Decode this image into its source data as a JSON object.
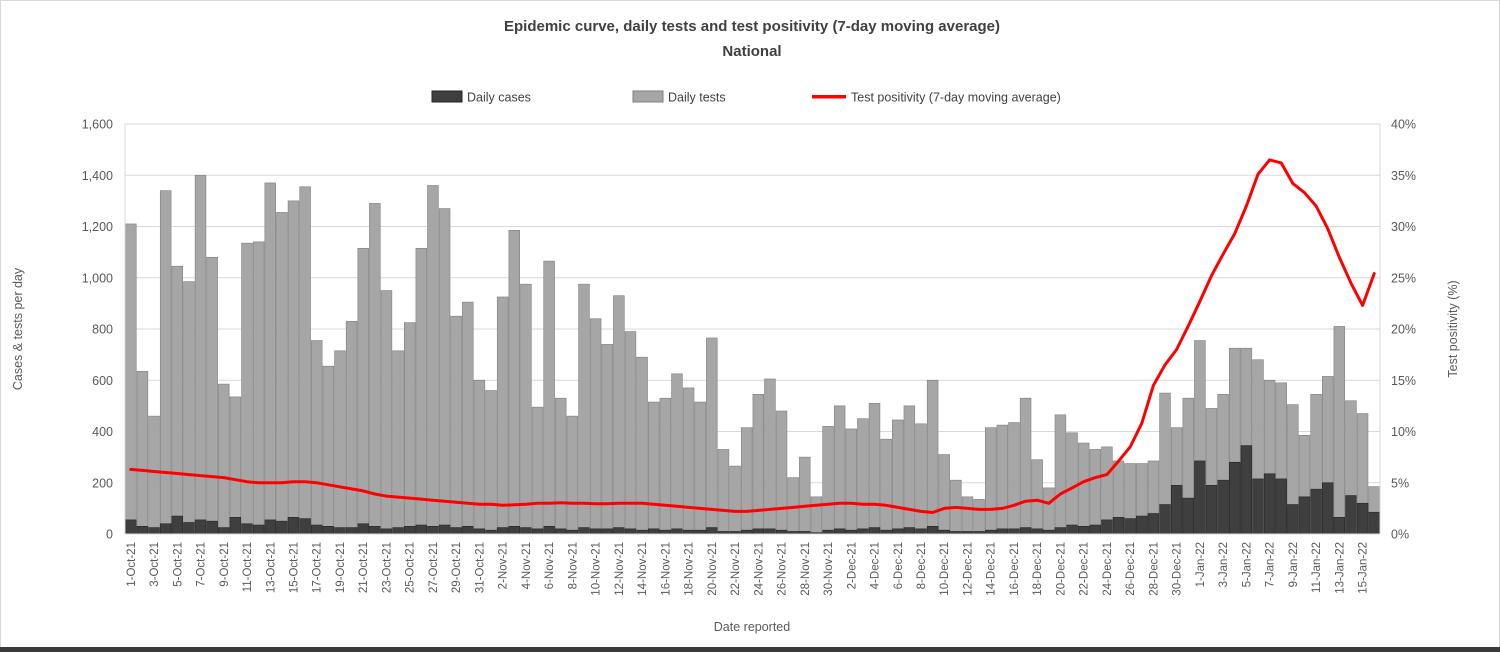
{
  "title": {
    "line1": "Epidemic curve, daily tests and test positivity (7-day moving average)",
    "line2": "National"
  },
  "legend": {
    "cases_label": "Daily cases",
    "tests_label": "Daily tests",
    "positivity_label": "Test positivity (7-day moving average)"
  },
  "axes": {
    "left_title": "Cases & tests per day",
    "right_title": "Test positivity (%)",
    "x_title": "Date reported",
    "left_ticks": [
      "0",
      "200",
      "400",
      "600",
      "800",
      "1,000",
      "1,200",
      "1,400",
      "1,600"
    ],
    "right_ticks": [
      "0%",
      "5%",
      "10%",
      "15%",
      "20%",
      "25%",
      "30%",
      "35%",
      "40%"
    ]
  },
  "colors": {
    "tests": "#a6a6a6",
    "tests_border": "#7f7f7f",
    "cases": "#3f3f3f",
    "cases_border": "#262626",
    "positivity": "#ff0000",
    "grid": "#d9d9d9",
    "axis_line": "#bfbfbf",
    "frame": "#d9d9d9",
    "bottom_bar": "#3a3a3a"
  },
  "chart_data": {
    "type": "bar",
    "title": "Epidemic curve, daily tests and test positivity (7-day moving average) - National",
    "xlabel": "Date reported",
    "ylabel_left": "Cases & tests per day",
    "ylabel_right": "Test positivity (%)",
    "ylim_left": [
      0,
      1600
    ],
    "ylim_right": [
      0,
      40
    ],
    "grid": true,
    "legend_position": "top",
    "categories": [
      "1-Oct-21",
      "2-Oct-21",
      "3-Oct-21",
      "4-Oct-21",
      "5-Oct-21",
      "6-Oct-21",
      "7-Oct-21",
      "8-Oct-21",
      "9-Oct-21",
      "10-Oct-21",
      "11-Oct-21",
      "12-Oct-21",
      "13-Oct-21",
      "14-Oct-21",
      "15-Oct-21",
      "16-Oct-21",
      "17-Oct-21",
      "18-Oct-21",
      "19-Oct-21",
      "20-Oct-21",
      "21-Oct-21",
      "22-Oct-21",
      "23-Oct-21",
      "24-Oct-21",
      "25-Oct-21",
      "26-Oct-21",
      "27-Oct-21",
      "28-Oct-21",
      "29-Oct-21",
      "30-Oct-21",
      "31-Oct-21",
      "1-Nov-21",
      "2-Nov-21",
      "3-Nov-21",
      "4-Nov-21",
      "5-Nov-21",
      "6-Nov-21",
      "7-Nov-21",
      "8-Nov-21",
      "9-Nov-21",
      "10-Nov-21",
      "11-Nov-21",
      "12-Nov-21",
      "13-Nov-21",
      "14-Nov-21",
      "15-Nov-21",
      "16-Nov-21",
      "17-Nov-21",
      "18-Nov-21",
      "19-Nov-21",
      "20-Nov-21",
      "21-Nov-21",
      "22-Nov-21",
      "23-Nov-21",
      "24-Nov-21",
      "25-Nov-21",
      "26-Nov-21",
      "27-Nov-21",
      "28-Nov-21",
      "29-Nov-21",
      "30-Nov-21",
      "1-Dec-21",
      "2-Dec-21",
      "3-Dec-21",
      "4-Dec-21",
      "5-Dec-21",
      "6-Dec-21",
      "7-Dec-21",
      "8-Dec-21",
      "9-Dec-21",
      "10-Dec-21",
      "11-Dec-21",
      "12-Dec-21",
      "13-Dec-21",
      "14-Dec-21",
      "15-Dec-21",
      "16-Dec-21",
      "17-Dec-21",
      "18-Dec-21",
      "19-Dec-21",
      "20-Dec-21",
      "21-Dec-21",
      "22-Dec-21",
      "23-Dec-21",
      "24-Dec-21",
      "25-Dec-21",
      "26-Dec-21",
      "27-Dec-21",
      "28-Dec-21",
      "29-Dec-21",
      "30-Dec-21",
      "31-Dec-21",
      "1-Jan-22",
      "2-Jan-22",
      "3-Jan-22",
      "4-Jan-22",
      "5-Jan-22",
      "6-Jan-22",
      "7-Jan-22",
      "8-Jan-22",
      "9-Jan-22",
      "10-Jan-22",
      "11-Jan-22",
      "12-Jan-22",
      "13-Jan-22",
      "14-Jan-22",
      "15-Jan-22",
      "16-Jan-22"
    ],
    "series": [
      {
        "name": "Daily cases",
        "type": "bar",
        "axis": "left",
        "values": [
          55,
          30,
          25,
          40,
          70,
          45,
          55,
          50,
          25,
          65,
          40,
          35,
          55,
          50,
          65,
          60,
          35,
          30,
          25,
          25,
          40,
          30,
          20,
          25,
          30,
          35,
          30,
          35,
          25,
          30,
          20,
          15,
          25,
          30,
          25,
          20,
          30,
          20,
          15,
          25,
          20,
          20,
          25,
          20,
          15,
          20,
          15,
          20,
          15,
          15,
          25,
          10,
          10,
          15,
          20,
          20,
          15,
          10,
          10,
          5,
          15,
          20,
          15,
          20,
          25,
          15,
          20,
          25,
          20,
          30,
          15,
          10,
          10,
          10,
          15,
          20,
          20,
          25,
          20,
          15,
          25,
          35,
          30,
          35,
          55,
          65,
          60,
          70,
          80,
          115,
          190,
          140,
          285,
          190,
          210,
          280,
          345,
          215,
          235,
          215,
          115,
          145,
          175,
          200,
          65,
          150,
          120,
          85
        ]
      },
      {
        "name": "Daily tests",
        "type": "bar",
        "axis": "left",
        "values": [
          1210,
          635,
          460,
          1340,
          1045,
          985,
          1400,
          1080,
          585,
          535,
          1135,
          1140,
          1370,
          1255,
          1300,
          1355,
          755,
          655,
          715,
          830,
          1115,
          1290,
          950,
          715,
          825,
          1115,
          1360,
          1270,
          850,
          905,
          600,
          560,
          925,
          1185,
          975,
          495,
          1065,
          530,
          460,
          975,
          840,
          740,
          930,
          790,
          690,
          515,
          530,
          625,
          570,
          515,
          765,
          330,
          265,
          415,
          545,
          605,
          480,
          220,
          300,
          145,
          420,
          500,
          410,
          450,
          510,
          370,
          445,
          500,
          430,
          600,
          310,
          210,
          145,
          135,
          415,
          425,
          435,
          530,
          290,
          180,
          465,
          395,
          355,
          330,
          340,
          285,
          275,
          275,
          285,
          550,
          415,
          530,
          755,
          490,
          545,
          725,
          725,
          680,
          600,
          590,
          505,
          385,
          545,
          615,
          810,
          520,
          470,
          185
        ]
      },
      {
        "name": "Test positivity (7-day moving average)",
        "type": "line",
        "axis": "right",
        "values": [
          6.3,
          6.2,
          6.1,
          6.0,
          5.9,
          5.8,
          5.7,
          5.6,
          5.5,
          5.3,
          5.1,
          5.0,
          5.0,
          5.0,
          5.1,
          5.1,
          5.0,
          4.8,
          4.6,
          4.4,
          4.2,
          3.9,
          3.7,
          3.6,
          3.5,
          3.4,
          3.3,
          3.2,
          3.1,
          3.0,
          2.9,
          2.9,
          2.8,
          2.85,
          2.9,
          3.0,
          3.0,
          3.05,
          3.0,
          3.0,
          2.95,
          2.95,
          3.0,
          3.0,
          3.0,
          2.9,
          2.8,
          2.7,
          2.6,
          2.5,
          2.4,
          2.3,
          2.2,
          2.2,
          2.3,
          2.4,
          2.5,
          2.6,
          2.7,
          2.8,
          2.9,
          3.0,
          3.0,
          2.9,
          2.9,
          2.8,
          2.6,
          2.4,
          2.2,
          2.1,
          2.5,
          2.6,
          2.5,
          2.4,
          2.4,
          2.5,
          2.8,
          3.2,
          3.3,
          3.0,
          3.9,
          4.5,
          5.1,
          5.5,
          5.8,
          7.1,
          8.5,
          10.8,
          14.5,
          16.5,
          18.0,
          20.3,
          22.7,
          25.2,
          27.3,
          29.3,
          32.0,
          35.1,
          36.5,
          36.2,
          34.2,
          33.3,
          32.0,
          29.8,
          27.0,
          24.5,
          22.3,
          25.4
        ]
      }
    ]
  }
}
